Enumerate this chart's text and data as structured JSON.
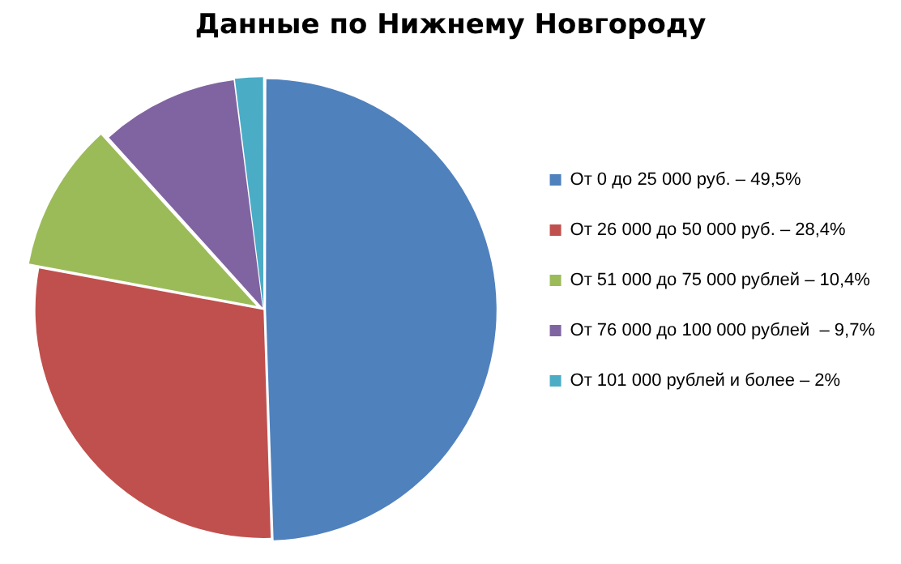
{
  "chart_data": {
    "type": "pie",
    "title": "Данные по Нижнему Новгороду",
    "categories": [
      "От 0 до 25 000 руб. – 49,5%",
      "От 26 000 до 50 000 руб. – 28,4%",
      "От 51 000 до 75 000 рублей – 10,4%",
      "От 76 000 до 100 000 рублей  – 9,7%",
      "От 101 000 рублей и более – 2%"
    ],
    "values": [
      49.5,
      28.4,
      10.4,
      9.7,
      2
    ],
    "colors": [
      "#4f81bd",
      "#c0504d",
      "#9bbb59",
      "#8064a2",
      "#4bacc6"
    ],
    "legend": "right"
  }
}
